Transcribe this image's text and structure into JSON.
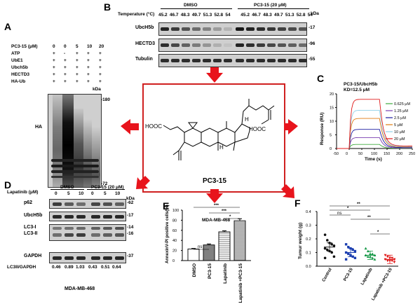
{
  "panel_letters": {
    "a": "A",
    "b": "B",
    "c": "C",
    "d": "D",
    "e": "E",
    "f": "F"
  },
  "colors": {
    "arrow": "#e8141c",
    "box_border": "#d02020"
  },
  "panel_a": {
    "row_labels": [
      "PC3-15 (μM)",
      "ATP",
      "UbE1",
      "Ubch5b",
      "HECTD3",
      "HA-Ub"
    ],
    "columns": [
      [
        "0",
        "+",
        "+",
        "+",
        "+",
        "+"
      ],
      [
        "0",
        "-",
        "+",
        "+",
        "+",
        "+"
      ],
      [
        "5",
        "+",
        "+",
        "+",
        "+",
        "+"
      ],
      [
        "10",
        "+",
        "+",
        "+",
        "+",
        "+"
      ],
      [
        "20",
        "+",
        "+",
        "+",
        "+",
        "+"
      ]
    ],
    "kda_label": "kDa",
    "marker_top": "-180",
    "marker_bottom": "-72",
    "blot_label": "HA"
  },
  "panel_b": {
    "temp_label": "Temperature (°C)",
    "group1": "DMSO",
    "group2": "PC3-15 (20 μM)",
    "temps": [
      "45.2",
      "46.7",
      "48.3",
      "49.7",
      "51.3",
      "52.8",
      "54",
      "45.2",
      "46.7",
      "48.3",
      "49.7",
      "51.3",
      "52.8",
      "54"
    ],
    "kda_label": "kDa",
    "blots": [
      {
        "name": "UbcH5b",
        "marker": "-17"
      },
      {
        "name": "HECTD3",
        "marker": "-96"
      },
      {
        "name": "Tubulin",
        "marker": "-55"
      }
    ]
  },
  "panel_c": {
    "title_line1": "PC3-15/UbcH5b",
    "title_line2": "KD=12.5 μM",
    "ylabel": "Response (RU)",
    "xlabel": "Time (s)",
    "xticks": [
      "-50",
      "0",
      "50",
      "100",
      "150",
      "200",
      "250"
    ],
    "yticks": [
      "0",
      "5",
      "10",
      "15",
      "20"
    ],
    "legend": [
      "0.625 μM",
      "1.25 μM",
      "2.5 μM",
      "5 μM",
      "10 μM",
      "20 μM"
    ],
    "legend_colors": [
      "#3daa3d",
      "#7a3fb0",
      "#1a1aa0",
      "#e07a10",
      "#8fd0e8",
      "#e01a1a"
    ],
    "plateaus": [
      1.5,
      4,
      7,
      11,
      14,
      18
    ]
  },
  "center": {
    "compound": "PC3-15",
    "acid_left": "HOOC",
    "acid_right": "HOOC",
    "h1": "H",
    "h2": "H"
  },
  "panel_d": {
    "lapatinib_label": "Lapatinib (μM)",
    "group1": "DMSO",
    "group2": "PC3-15 (20 μM)",
    "doses": [
      "0",
      "5",
      "10",
      "0",
      "5",
      "10"
    ],
    "kda_label": "kDa",
    "blots": [
      {
        "name": "p62",
        "marker": "-62"
      },
      {
        "name": "UbcH5b",
        "marker": "-17"
      },
      {
        "name": "LC3-I",
        "marker": "-14"
      },
      {
        "name": "LC3-II",
        "marker": "-16"
      },
      {
        "name": "GAPDH",
        "marker": "-37"
      }
    ],
    "ratio_label": "LC3II/GAPDH",
    "ratios": [
      "0.46",
      "0.89",
      "1.03",
      "0.43",
      "0.51",
      "0.64"
    ],
    "cell_line": "MDA-MB-468"
  },
  "panel_e": {
    "title": "MDA-MB-468",
    "ylabel": "AnnexinV-PI positive cells(%)",
    "yticks": [
      "0",
      "20",
      "40",
      "60",
      "80",
      "100"
    ],
    "sig": [
      "***",
      "***",
      "*"
    ],
    "ns": "ns"
  },
  "panel_f": {
    "ylabel": "Tumur weight (g)",
    "yticks": [
      "0.0",
      "0.1",
      "0.2",
      "0.3",
      "0.4"
    ],
    "sig": [
      "**",
      "*",
      "ns",
      "**",
      "*"
    ]
  },
  "chart_data": [
    {
      "type": "line",
      "title": "PC3-15/UbcH5b KD=12.5 μM",
      "xlabel": "Time (s)",
      "ylabel": "Response (RU)",
      "xlim": [
        -50,
        250
      ],
      "ylim": [
        0,
        20
      ],
      "series": [
        {
          "name": "0.625 μM",
          "plateau": 1.5
        },
        {
          "name": "1.25 μM",
          "plateau": 4
        },
        {
          "name": "2.5 μM",
          "plateau": 7
        },
        {
          "name": "5 μM",
          "plateau": 11
        },
        {
          "name": "10 μM",
          "plateau": 14
        },
        {
          "name": "20 μM",
          "plateau": 18
        }
      ]
    },
    {
      "type": "bar",
      "title": "MDA-MB-468",
      "categories": [
        "DMSO",
        "PC3-15",
        "Lapatinib",
        "Lapatinib +PC3-15"
      ],
      "values": [
        23,
        31,
        57,
        79
      ],
      "errors": [
        1,
        2,
        2,
        4
      ],
      "ylabel": "AnnexinV-PI positive cells(%)",
      "ylim": [
        0,
        100
      ],
      "significance": [
        {
          "label": "ns",
          "pair": [
            0,
            1
          ]
        },
        {
          "label": "***",
          "pair": [
            0,
            3
          ]
        },
        {
          "label": "***",
          "pair": [
            1,
            3
          ]
        },
        {
          "label": "*",
          "pair": [
            2,
            3
          ]
        }
      ]
    },
    {
      "type": "scatter",
      "categories": [
        "Control",
        "PC3-15",
        "Lapatinib",
        "Lapatinib +PC3-15"
      ],
      "colors": [
        "#111111",
        "#1c3fb0",
        "#1a9a4a",
        "#e01a1a"
      ],
      "markers": [
        "circle",
        "square",
        "triangle",
        "inverted-triangle"
      ],
      "points": [
        [
          0.23,
          0.19,
          0.17,
          0.16,
          0.15,
          0.13,
          0.12,
          0.11,
          0.1,
          0.07,
          0.06
        ],
        [
          0.16,
          0.14,
          0.13,
          0.12,
          0.11,
          0.1,
          0.09,
          0.08,
          0.07,
          0.06,
          0.05
        ],
        [
          0.13,
          0.11,
          0.09,
          0.09,
          0.08,
          0.08,
          0.07,
          0.07,
          0.06,
          0.05
        ],
        [
          0.08,
          0.07,
          0.06,
          0.06,
          0.05,
          0.05,
          0.04,
          0.04,
          0.04,
          0.03
        ]
      ],
      "means": [
        0.14,
        0.1,
        0.08,
        0.05
      ],
      "ylabel": "Tumur weight (g)",
      "ylim": [
        0,
        0.4
      ]
    }
  ]
}
